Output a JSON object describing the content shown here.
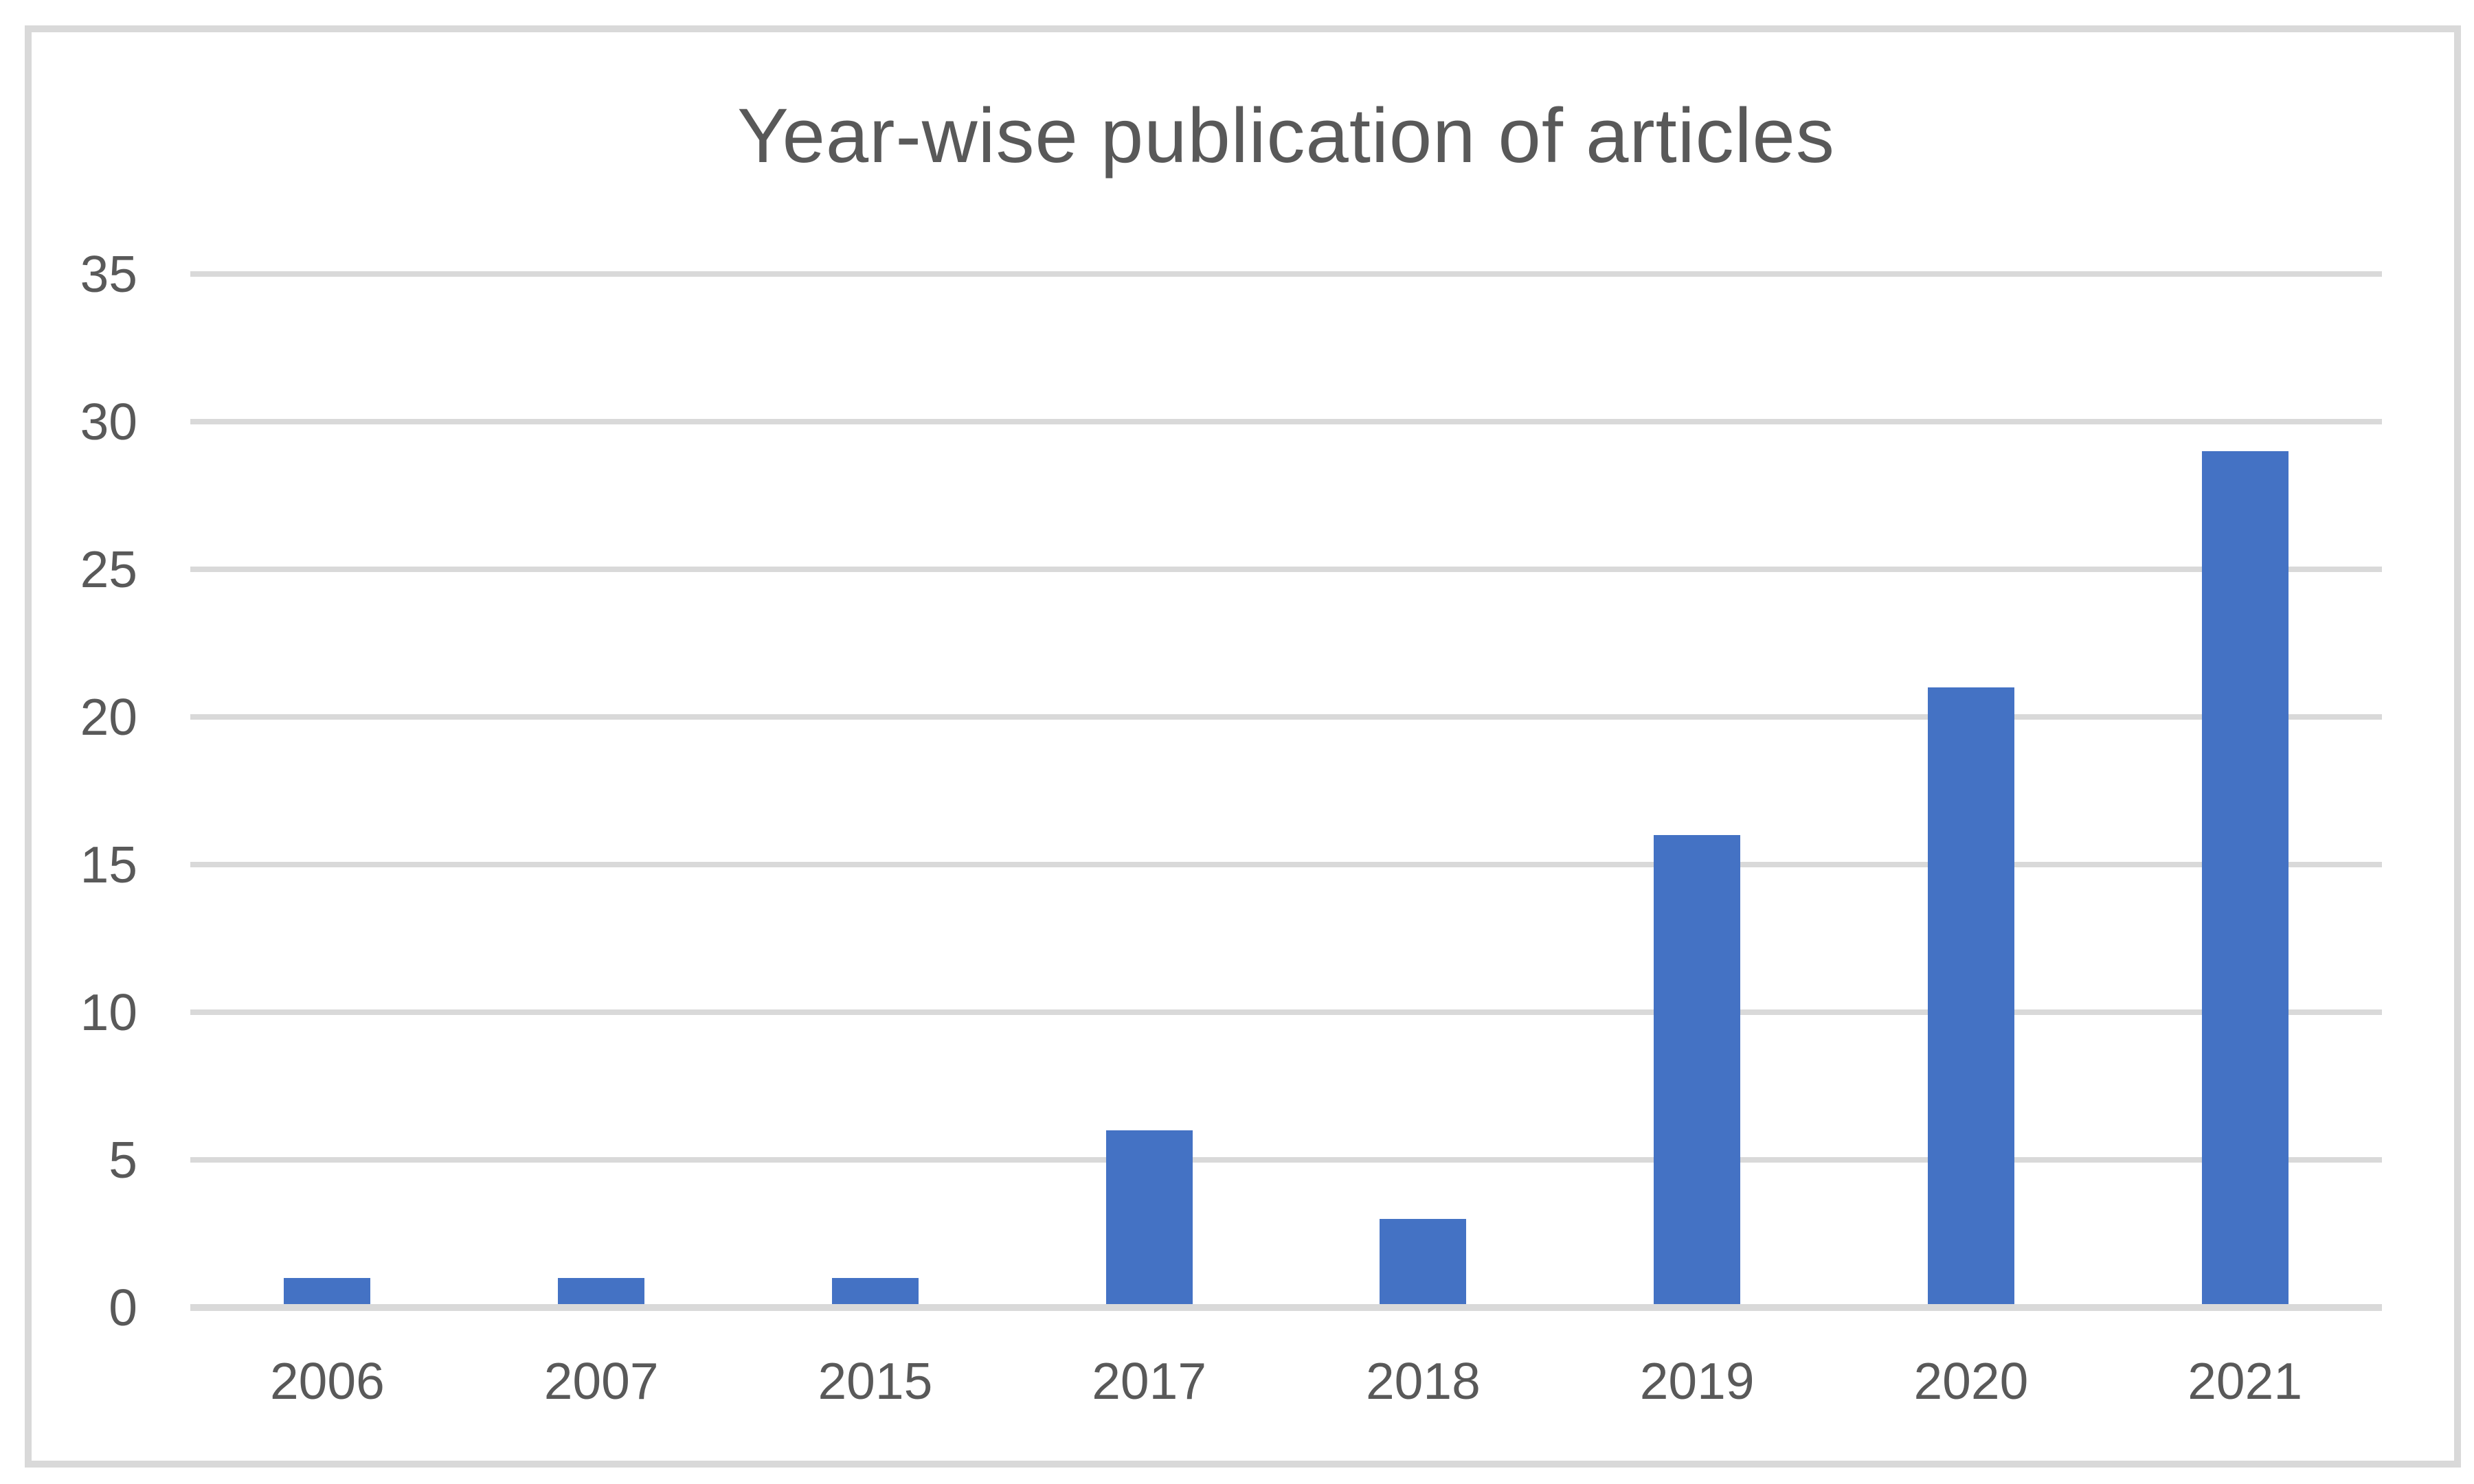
{
  "chart_data": {
    "type": "bar",
    "title": "Year-wise publication of articles",
    "categories": [
      "2006",
      "2007",
      "2015",
      "2017",
      "2018",
      "2019",
      "2020",
      "2021"
    ],
    "values": [
      1,
      1,
      1,
      6,
      3,
      16,
      21,
      29
    ],
    "xlabel": "",
    "ylabel": "",
    "ylim": [
      0,
      35
    ],
    "yticks": [
      0,
      5,
      10,
      15,
      20,
      25,
      30,
      35
    ],
    "grid": "horizontal",
    "legend_position": "none",
    "colors": {
      "bar": "#4472C4",
      "gridline": "#D9D9D9",
      "axis_line": "#D9D9D9",
      "frame_border": "#D9D9D9",
      "text": "#595959",
      "background": "#FFFFFF"
    }
  }
}
